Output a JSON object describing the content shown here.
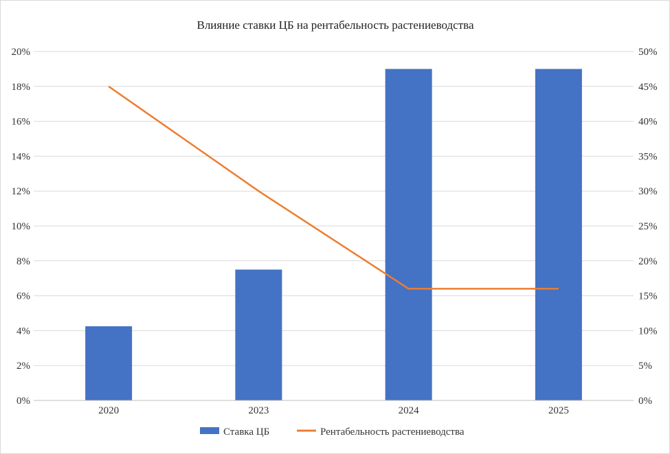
{
  "chart_data": {
    "type": "bar",
    "title": "Влияние ставки ЦБ на рентабельность растениеводства",
    "xlabel": "",
    "ylabel": "",
    "categories": [
      "2020",
      "2023",
      "2024",
      "2025"
    ],
    "series": [
      {
        "name": "Ставка ЦБ",
        "type": "bar",
        "axis": "left",
        "color": "#4472C4",
        "values": [
          0.0425,
          0.075,
          0.19,
          0.19
        ]
      },
      {
        "name": "Рентабельность растениеводства",
        "type": "line",
        "axis": "right",
        "color": "#ED7D31",
        "values": [
          0.45,
          0.3,
          0.16,
          0.16
        ]
      }
    ],
    "y_left": {
      "range": [
        0,
        0.2
      ],
      "ticks": [
        0,
        0.02,
        0.04,
        0.06,
        0.08,
        0.1,
        0.12,
        0.14,
        0.16,
        0.18,
        0.2
      ],
      "tick_labels": [
        "0%",
        "2%",
        "4%",
        "6%",
        "8%",
        "10%",
        "12%",
        "14%",
        "16%",
        "18%",
        "20%"
      ]
    },
    "y_right": {
      "range": [
        0,
        0.5
      ],
      "ticks": [
        0,
        0.05,
        0.1,
        0.15,
        0.2,
        0.25,
        0.3,
        0.35,
        0.4,
        0.45,
        0.5
      ],
      "tick_labels": [
        "0%",
        "5%",
        "10%",
        "15%",
        "20%",
        "25%",
        "30%",
        "35%",
        "40%",
        "45%",
        "50%"
      ]
    },
    "grid": true,
    "legend_position": "bottom-center",
    "colors": {
      "grid": "#d9d9d9",
      "axis": "#bfbfbf",
      "background": "#ffffff"
    }
  }
}
